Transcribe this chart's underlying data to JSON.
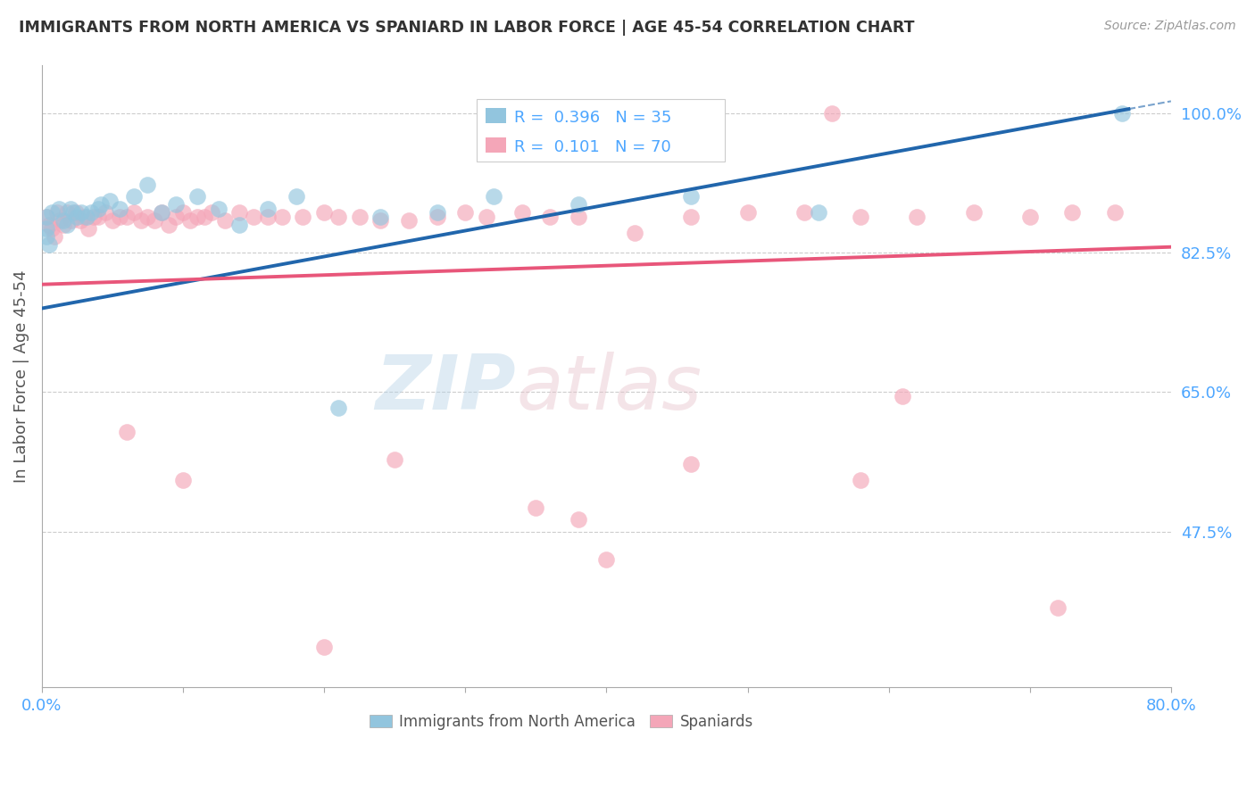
{
  "title": "IMMIGRANTS FROM NORTH AMERICA VS SPANIARD IN LABOR FORCE | AGE 45-54 CORRELATION CHART",
  "source": "Source: ZipAtlas.com",
  "ylabel": "In Labor Force | Age 45-54",
  "xmin": 0.0,
  "xmax": 0.8,
  "ymin": 0.28,
  "ymax": 1.06,
  "ytick_vals": [
    0.475,
    0.65,
    0.825,
    1.0
  ],
  "ytick_labels": [
    "47.5%",
    "65.0%",
    "82.5%",
    "100.0%"
  ],
  "watermark_zip": "ZIP",
  "watermark_atlas": "atlas",
  "blue_R": 0.396,
  "blue_N": 35,
  "pink_R": 0.101,
  "pink_N": 70,
  "blue_color": "#92c5de",
  "pink_color": "#f4a6b8",
  "blue_line_color": "#2166ac",
  "pink_line_color": "#e8567a",
  "blue_line_x0": 0.0,
  "blue_line_y0": 0.755,
  "blue_line_x1": 0.77,
  "blue_line_y1": 1.005,
  "pink_line_x0": 0.0,
  "pink_line_y0": 0.785,
  "pink_line_x1": 0.8,
  "pink_line_y1": 0.832,
  "blue_scatter_x": [
    0.003,
    0.003,
    0.003,
    0.005,
    0.007,
    0.012,
    0.015,
    0.018,
    0.02,
    0.022,
    0.025,
    0.028,
    0.032,
    0.035,
    0.04,
    0.042,
    0.048,
    0.055,
    0.065,
    0.075,
    0.085,
    0.095,
    0.11,
    0.125,
    0.14,
    0.16,
    0.18,
    0.21,
    0.24,
    0.28,
    0.32,
    0.38,
    0.46,
    0.55,
    0.765
  ],
  "blue_scatter_y": [
    0.87,
    0.855,
    0.845,
    0.835,
    0.875,
    0.88,
    0.865,
    0.86,
    0.88,
    0.875,
    0.87,
    0.875,
    0.87,
    0.875,
    0.88,
    0.885,
    0.89,
    0.88,
    0.895,
    0.91,
    0.875,
    0.885,
    0.895,
    0.88,
    0.86,
    0.88,
    0.895,
    0.63,
    0.87,
    0.875,
    0.895,
    0.885,
    0.895,
    0.875,
    1.0
  ],
  "pink_scatter_x": [
    0.003,
    0.005,
    0.007,
    0.009,
    0.011,
    0.013,
    0.015,
    0.018,
    0.021,
    0.024,
    0.027,
    0.03,
    0.033,
    0.037,
    0.04,
    0.045,
    0.05,
    0.055,
    0.06,
    0.065,
    0.07,
    0.075,
    0.08,
    0.085,
    0.09,
    0.095,
    0.1,
    0.105,
    0.11,
    0.115,
    0.12,
    0.13,
    0.14,
    0.15,
    0.16,
    0.17,
    0.185,
    0.2,
    0.21,
    0.225,
    0.24,
    0.26,
    0.28,
    0.3,
    0.315,
    0.34,
    0.36,
    0.38,
    0.42,
    0.46,
    0.5,
    0.54,
    0.58,
    0.62,
    0.66,
    0.7,
    0.73,
    0.76,
    0.61,
    0.56,
    0.25,
    0.35,
    0.38,
    0.46,
    0.72,
    0.58,
    0.4,
    0.2,
    0.1,
    0.06
  ],
  "pink_scatter_y": [
    0.87,
    0.86,
    0.855,
    0.845,
    0.875,
    0.865,
    0.86,
    0.875,
    0.865,
    0.875,
    0.865,
    0.87,
    0.855,
    0.87,
    0.87,
    0.875,
    0.865,
    0.87,
    0.87,
    0.875,
    0.865,
    0.87,
    0.865,
    0.875,
    0.86,
    0.87,
    0.875,
    0.865,
    0.87,
    0.87,
    0.875,
    0.865,
    0.875,
    0.87,
    0.87,
    0.87,
    0.87,
    0.875,
    0.87,
    0.87,
    0.865,
    0.865,
    0.87,
    0.875,
    0.87,
    0.875,
    0.87,
    0.87,
    0.85,
    0.87,
    0.875,
    0.875,
    0.87,
    0.87,
    0.875,
    0.87,
    0.875,
    0.875,
    0.645,
    1.0,
    0.565,
    0.505,
    0.49,
    0.56,
    0.38,
    0.54,
    0.44,
    0.33,
    0.54,
    0.6
  ],
  "background_color": "#ffffff",
  "grid_color": "#cccccc",
  "title_color": "#333333",
  "axis_label_color": "#555555",
  "tick_color": "#4da6ff",
  "legend_text_color": "#333333",
  "legend_num_color": "#4da6ff"
}
